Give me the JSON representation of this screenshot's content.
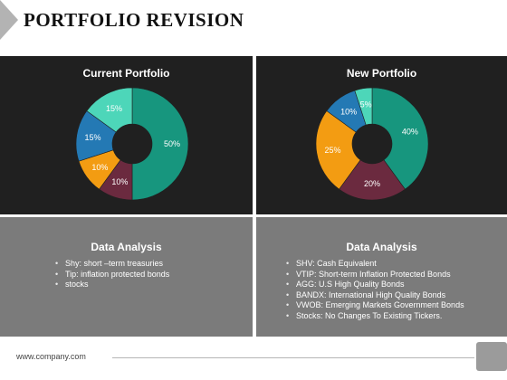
{
  "page": {
    "title": "PORTFOLIO REVISION",
    "footer": "www.company.com"
  },
  "chart_data": [
    {
      "type": "pie",
      "title": "Current Portfolio",
      "labels": [
        "50%",
        "10%",
        "10%",
        "15%",
        "15%"
      ],
      "values": [
        50,
        10,
        10,
        15,
        15
      ],
      "colors": [
        "#17967e",
        "#6b2a3f",
        "#f39c12",
        "#2479b4",
        "#4dd6b9"
      ]
    },
    {
      "type": "pie",
      "title": "New Portfolio",
      "labels": [
        "40%",
        "20%",
        "25%",
        "10%",
        "5%"
      ],
      "values": [
        40,
        20,
        25,
        10,
        5
      ],
      "colors": [
        "#17967e",
        "#6b2a3f",
        "#f39c12",
        "#2479b4",
        "#4dd6b9"
      ]
    }
  ],
  "analysis": [
    {
      "title": "Data Analysis",
      "items": [
        "Shy: short –term treasuries",
        "Tip: inflation protected bonds",
        "stocks"
      ]
    },
    {
      "title": "Data Analysis",
      "items": [
        "SHV: Cash Equivalent",
        "VTIP: Short-term Inflation Protected Bonds",
        "AGG: U.S High Quality Bonds",
        "BANDX: International High Quality Bonds",
        "VWOB: Emerging Markets Government Bonds",
        "Stocks: No Changes To Existing Tickers."
      ]
    }
  ]
}
